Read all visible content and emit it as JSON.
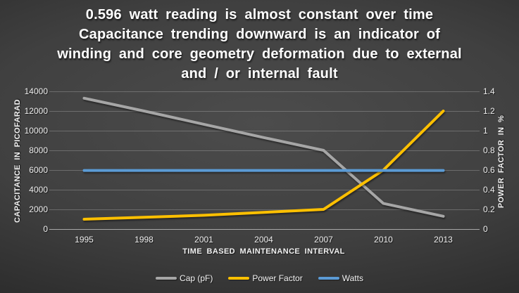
{
  "title": {
    "lines": [
      "0.596 watt reading is almost constant over time",
      "Capacitance trending downward is an indicator of",
      "winding and core geometry deformation due to external",
      "and / or internal fault"
    ]
  },
  "chart_data": {
    "type": "line",
    "categories": [
      "1995",
      "1998",
      "2001",
      "2004",
      "2007",
      "2010",
      "2013"
    ],
    "series": [
      {
        "name": "Cap (pF)",
        "axis": "left",
        "color": "#a6a6a6",
        "values": [
          13300,
          12000,
          10650,
          9300,
          8000,
          2600,
          1300
        ]
      },
      {
        "name": "Power Factor",
        "axis": "right",
        "color": "#ffc000",
        "values": [
          0.1,
          0.12,
          0.14,
          0.17,
          0.2,
          0.6,
          1.2
        ]
      },
      {
        "name": "Watts",
        "axis": "right",
        "color": "#5b9bd5",
        "values": [
          0.596,
          0.596,
          0.596,
          0.596,
          0.596,
          0.596,
          0.596
        ]
      }
    ],
    "left_axis": {
      "label": "CAPACITANCE IN PICOFARAD",
      "min": 0,
      "max": 14000,
      "tick_labels": [
        "0",
        "2000",
        "4000",
        "6000",
        "8000",
        "10000",
        "12000",
        "14000"
      ]
    },
    "right_axis": {
      "label": "POWER FACTOR IN %",
      "min": 0,
      "max": 1.4,
      "tick_labels": [
        "0",
        "0.2",
        "0.4",
        "0.6",
        "0.8",
        "1",
        "1.2",
        "1.4"
      ]
    },
    "x_axis": {
      "label": "TIME BASED MAINTENANCE INTERVAL"
    },
    "legend_position": "bottom",
    "grid": true,
    "colors": {
      "gridline": "rgba(255,255,255,0.22)",
      "axis_line": "#a8a8a8",
      "text": "#ffffff",
      "background_center": "#4c4c4c",
      "background_edge": "#1f1f1f"
    }
  }
}
